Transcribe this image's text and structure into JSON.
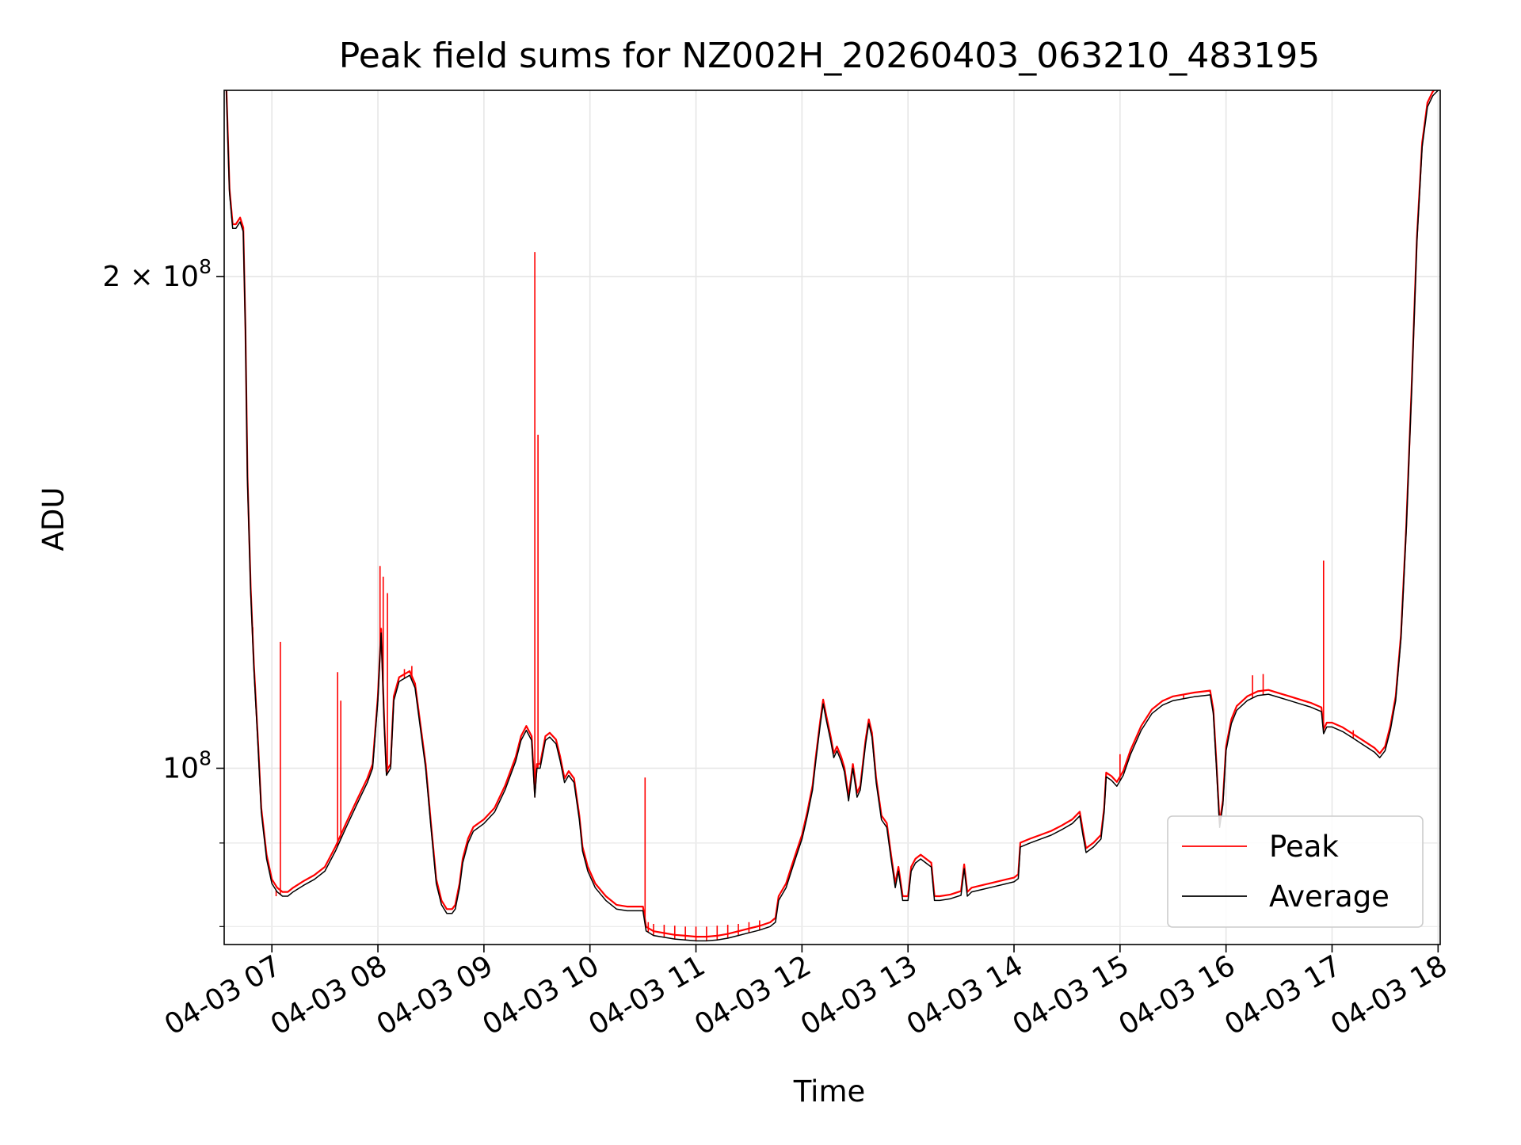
{
  "chart_data": {
    "type": "line",
    "title": "Peak field sums for NZ002H_20260403_063210_483195",
    "xlabel": "Time",
    "ylabel": "ADU",
    "yscale": "log",
    "xlim": [
      6.55,
      18.02
    ],
    "ylim": [
      78000000,
      260000000
    ],
    "grid": true,
    "x_ticks": [
      {
        "value": 7,
        "label": "04-03 07"
      },
      {
        "value": 8,
        "label": "04-03 08"
      },
      {
        "value": 9,
        "label": "04-03 09"
      },
      {
        "value": 10,
        "label": "04-03 10"
      },
      {
        "value": 11,
        "label": "04-03 11"
      },
      {
        "value": 12,
        "label": "04-03 12"
      },
      {
        "value": 13,
        "label": "04-03 13"
      },
      {
        "value": 14,
        "label": "04-03 14"
      },
      {
        "value": 15,
        "label": "04-03 15"
      },
      {
        "value": 16,
        "label": "04-03 16"
      },
      {
        "value": 17,
        "label": "04-03 17"
      },
      {
        "value": 18,
        "label": "04-03 18"
      }
    ],
    "y_major_ticks": [
      {
        "value": 100000000,
        "base": "10",
        "exp": "8",
        "prefix": ""
      },
      {
        "value": 200000000,
        "base": "10",
        "exp": "8",
        "prefix": "2 × "
      }
    ],
    "y_minor_ticks": [
      80000000,
      90000000
    ],
    "legend": {
      "position": "lower-right",
      "entries": [
        {
          "name": "Peak",
          "color": "#ff0000"
        },
        {
          "name": "Average",
          "color": "#000000"
        }
      ]
    },
    "series": [
      {
        "name": "Average",
        "color": "#000000",
        "points": [
          [
            6.57,
            260000000
          ],
          [
            6.6,
            225000000
          ],
          [
            6.63,
            214000000
          ],
          [
            6.66,
            214000000
          ],
          [
            6.7,
            216000000
          ],
          [
            6.73,
            213000000
          ],
          [
            6.75,
            185000000
          ],
          [
            6.77,
            150000000
          ],
          [
            6.8,
            128000000
          ],
          [
            6.83,
            115000000
          ],
          [
            6.87,
            103000000
          ],
          [
            6.9,
            94000000
          ],
          [
            6.95,
            88000000
          ],
          [
            7.0,
            85000000
          ],
          [
            7.05,
            84000000
          ],
          [
            7.1,
            83500000
          ],
          [
            7.15,
            83500000
          ],
          [
            7.2,
            84000000
          ],
          [
            7.3,
            84800000
          ],
          [
            7.4,
            85500000
          ],
          [
            7.5,
            86500000
          ],
          [
            7.6,
            89000000
          ],
          [
            7.7,
            92000000
          ],
          [
            7.8,
            95000000
          ],
          [
            7.9,
            98000000
          ],
          [
            7.95,
            100000000
          ],
          [
            8.0,
            110000000
          ],
          [
            8.03,
            121000000
          ],
          [
            8.06,
            106000000
          ],
          [
            8.08,
            99000000
          ],
          [
            8.12,
            100000000
          ],
          [
            8.15,
            110000000
          ],
          [
            8.2,
            113000000
          ],
          [
            8.3,
            114000000
          ],
          [
            8.35,
            112000000
          ],
          [
            8.45,
            100000000
          ],
          [
            8.5,
            92000000
          ],
          [
            8.55,
            85000000
          ],
          [
            8.6,
            82500000
          ],
          [
            8.65,
            81500000
          ],
          [
            8.7,
            81500000
          ],
          [
            8.73,
            82000000
          ],
          [
            8.77,
            84500000
          ],
          [
            8.8,
            87500000
          ],
          [
            8.85,
            90000000
          ],
          [
            8.9,
            91500000
          ],
          [
            9.0,
            92500000
          ],
          [
            9.1,
            94000000
          ],
          [
            9.2,
            97000000
          ],
          [
            9.3,
            101000000
          ],
          [
            9.35,
            104000000
          ],
          [
            9.4,
            105500000
          ],
          [
            9.45,
            104000000
          ],
          [
            9.48,
            96000000
          ],
          [
            9.5,
            100000000
          ],
          [
            9.53,
            100000000
          ],
          [
            9.58,
            104000000
          ],
          [
            9.62,
            104500000
          ],
          [
            9.68,
            103500000
          ],
          [
            9.72,
            101000000
          ],
          [
            9.76,
            98000000
          ],
          [
            9.8,
            99000000
          ],
          [
            9.85,
            98000000
          ],
          [
            9.9,
            93000000
          ],
          [
            9.93,
            89000000
          ],
          [
            9.98,
            86500000
          ],
          [
            10.05,
            84500000
          ],
          [
            10.15,
            83000000
          ],
          [
            10.25,
            82000000
          ],
          [
            10.35,
            81800000
          ],
          [
            10.5,
            81800000
          ],
          [
            10.53,
            79500000
          ],
          [
            10.6,
            79000000
          ],
          [
            10.7,
            78800000
          ],
          [
            10.8,
            78600000
          ],
          [
            10.9,
            78500000
          ],
          [
            11.0,
            78400000
          ],
          [
            11.1,
            78400000
          ],
          [
            11.2,
            78500000
          ],
          [
            11.3,
            78700000
          ],
          [
            11.4,
            79000000
          ],
          [
            11.5,
            79300000
          ],
          [
            11.6,
            79600000
          ],
          [
            11.7,
            80000000
          ],
          [
            11.75,
            80500000
          ],
          [
            11.78,
            83000000
          ],
          [
            11.85,
            84500000
          ],
          [
            11.9,
            86500000
          ],
          [
            11.95,
            88500000
          ],
          [
            12.0,
            90500000
          ],
          [
            12.05,
            93500000
          ],
          [
            12.1,
            97000000
          ],
          [
            12.13,
            101000000
          ],
          [
            12.17,
            106000000
          ],
          [
            12.2,
            109500000
          ],
          [
            12.23,
            107000000
          ],
          [
            12.27,
            104000000
          ],
          [
            12.3,
            101500000
          ],
          [
            12.33,
            102500000
          ],
          [
            12.37,
            101000000
          ],
          [
            12.4,
            99500000
          ],
          [
            12.44,
            95500000
          ],
          [
            12.48,
            100000000
          ],
          [
            12.52,
            96000000
          ],
          [
            12.55,
            97000000
          ],
          [
            12.6,
            103500000
          ],
          [
            12.63,
            106500000
          ],
          [
            12.66,
            104500000
          ],
          [
            12.7,
            98000000
          ],
          [
            12.75,
            93000000
          ],
          [
            12.8,
            92000000
          ],
          [
            12.84,
            88000000
          ],
          [
            12.88,
            84500000
          ],
          [
            12.91,
            86500000
          ],
          [
            12.95,
            83000000
          ],
          [
            13.0,
            83000000
          ],
          [
            13.03,
            86500000
          ],
          [
            13.07,
            87500000
          ],
          [
            13.12,
            88000000
          ],
          [
            13.17,
            87500000
          ],
          [
            13.22,
            87000000
          ],
          [
            13.25,
            83000000
          ],
          [
            13.3,
            83000000
          ],
          [
            13.4,
            83200000
          ],
          [
            13.5,
            83600000
          ],
          [
            13.53,
            86800000
          ],
          [
            13.56,
            83500000
          ],
          [
            13.6,
            84000000
          ],
          [
            13.7,
            84300000
          ],
          [
            13.8,
            84600000
          ],
          [
            13.9,
            84900000
          ],
          [
            14.0,
            85200000
          ],
          [
            14.04,
            85600000
          ],
          [
            14.06,
            89500000
          ],
          [
            14.15,
            90000000
          ],
          [
            14.25,
            90500000
          ],
          [
            14.35,
            91000000
          ],
          [
            14.45,
            91700000
          ],
          [
            14.55,
            92500000
          ],
          [
            14.62,
            93500000
          ],
          [
            14.65,
            91000000
          ],
          [
            14.68,
            88800000
          ],
          [
            14.75,
            89500000
          ],
          [
            14.82,
            90500000
          ],
          [
            14.85,
            94000000
          ],
          [
            14.87,
            98800000
          ],
          [
            14.92,
            98300000
          ],
          [
            14.97,
            97500000
          ],
          [
            15.03,
            99000000
          ],
          [
            15.1,
            102000000
          ],
          [
            15.2,
            105500000
          ],
          [
            15.3,
            108000000
          ],
          [
            15.4,
            109300000
          ],
          [
            15.5,
            110000000
          ],
          [
            15.6,
            110300000
          ],
          [
            15.7,
            110600000
          ],
          [
            15.8,
            110800000
          ],
          [
            15.85,
            110900000
          ],
          [
            15.88,
            108000000
          ],
          [
            15.91,
            100000000
          ],
          [
            15.94,
            92000000
          ],
          [
            15.97,
            95000000
          ],
          [
            16.0,
            102500000
          ],
          [
            16.05,
            106500000
          ],
          [
            16.1,
            108500000
          ],
          [
            16.2,
            110000000
          ],
          [
            16.3,
            110800000
          ],
          [
            16.4,
            111000000
          ],
          [
            16.5,
            110500000
          ],
          [
            16.6,
            110000000
          ],
          [
            16.7,
            109500000
          ],
          [
            16.8,
            109000000
          ],
          [
            16.9,
            108300000
          ],
          [
            16.92,
            105000000
          ],
          [
            16.95,
            106000000
          ],
          [
            17.0,
            106000000
          ],
          [
            17.1,
            105300000
          ],
          [
            17.2,
            104300000
          ],
          [
            17.3,
            103300000
          ],
          [
            17.4,
            102300000
          ],
          [
            17.45,
            101500000
          ],
          [
            17.5,
            102500000
          ],
          [
            17.55,
            105500000
          ],
          [
            17.6,
            110000000
          ],
          [
            17.65,
            120000000
          ],
          [
            17.7,
            140000000
          ],
          [
            17.75,
            170000000
          ],
          [
            17.8,
            210000000
          ],
          [
            17.85,
            240000000
          ],
          [
            17.9,
            254000000
          ],
          [
            17.95,
            258000000
          ],
          [
            18.0,
            260000000
          ]
        ]
      },
      {
        "name": "Peak",
        "color": "#ff0000",
        "spikes": [
          [
            6.82,
            122000000
          ],
          [
            7.04,
            83500000
          ],
          [
            7.08,
            119500000
          ],
          [
            7.62,
            114500000
          ],
          [
            7.65,
            110000000
          ],
          [
            8.02,
            133000000
          ],
          [
            8.05,
            131000000
          ],
          [
            8.09,
            128000000
          ],
          [
            8.25,
            115000000
          ],
          [
            8.32,
            115500000
          ],
          [
            9.48,
            207000000
          ],
          [
            9.51,
            160000000
          ],
          [
            10.52,
            98700000
          ],
          [
            10.55,
            80500000
          ],
          [
            10.6,
            80300000
          ],
          [
            10.7,
            80200000
          ],
          [
            10.8,
            80100000
          ],
          [
            10.9,
            80000000
          ],
          [
            11.0,
            80000000
          ],
          [
            11.1,
            80000000
          ],
          [
            11.2,
            80100000
          ],
          [
            11.3,
            80200000
          ],
          [
            11.4,
            80300000
          ],
          [
            11.5,
            80500000
          ],
          [
            11.6,
            80700000
          ],
          [
            15.0,
            102000000
          ],
          [
            15.6,
            111000000
          ],
          [
            16.25,
            114000000
          ],
          [
            16.35,
            114200000
          ],
          [
            16.92,
            134000000
          ],
          [
            17.2,
            105500000
          ]
        ]
      }
    ]
  }
}
